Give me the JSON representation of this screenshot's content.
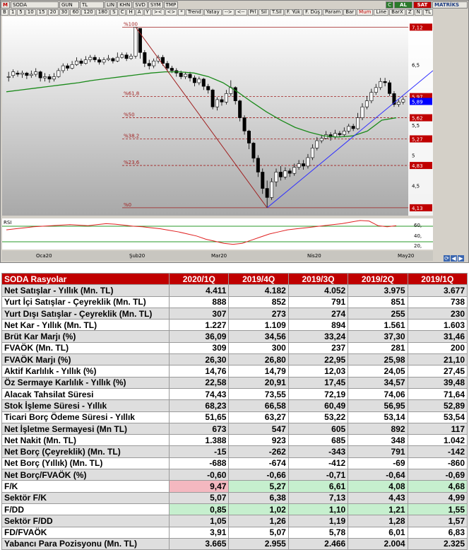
{
  "toolbar": {
    "symbol_prefix": "M",
    "symbol": "SODA",
    "period": "GUN",
    "currency": "TL",
    "scale": "LIN",
    "modes": [
      "KHN",
      "SVD",
      "SYM",
      "TMP"
    ],
    "al_label": "AL",
    "sat_label": "SAT",
    "matriks_label": "MATRİKS",
    "c_label": "C",
    "buttons_row2": [
      "B",
      "1",
      "5",
      "10",
      "15",
      "20",
      "30",
      "60",
      "120",
      "180",
      "S",
      "C",
      "H",
      "A",
      "Y",
      "><",
      "<>",
      "*",
      "Trend",
      "Yatay",
      "-->",
      "<--",
      "Prl",
      "Sil",
      "T.Sil",
      "F. Yük",
      "F. Düş",
      "Param",
      "Bar",
      "Mum",
      "Line",
      "BarX",
      "Z",
      "N",
      "TL"
    ]
  },
  "price_axis": [
    "7,12",
    "6,5",
    "5,97",
    "5,89",
    "5,62",
    "5,5",
    "5,27",
    "5",
    "4,83",
    "4,5",
    "4,13"
  ],
  "fib_levels": [
    {
      "label": "%100",
      "value": 7.12
    },
    {
      "label": "%61,8",
      "value": 5.97
    },
    {
      "label": "%50",
      "value": 5.62
    },
    {
      "label": "%38,2",
      "value": 5.27
    },
    {
      "label": "%23,6",
      "value": 4.83
    },
    {
      "label": "%0",
      "value": 4.13
    }
  ],
  "last_price": "5,89",
  "rsi_label": "RSI",
  "rsi_axis": [
    "60,",
    "40,",
    "20,"
  ],
  "x_labels": [
    "Oca20",
    "Şub20",
    "Mar20",
    "Nis20",
    "May20"
  ],
  "nav_icons": [
    "refresh-icon",
    "arrow-left-icon",
    "arrow-right-icon"
  ],
  "colors": {
    "header": "#c00000",
    "up_candle": "#ffffff",
    "down_candle": "#000000",
    "ma_line": "#1a8a1a",
    "trend_line": "#3030ff",
    "fib_line": "#a02020",
    "pink": "#f4b8c0",
    "green": "#c6efce"
  },
  "chart_data": {
    "type": "candlestick",
    "ylim": [
      4.0,
      7.3
    ],
    "candles": [
      [
        6.3,
        6.3,
        6.38,
        6.22
      ],
      [
        6.32,
        6.38,
        6.42,
        6.28
      ],
      [
        6.36,
        6.34,
        6.4,
        6.3
      ],
      [
        6.34,
        6.36,
        6.4,
        6.28
      ],
      [
        6.36,
        6.32,
        6.38,
        6.26
      ],
      [
        6.32,
        6.34,
        6.4,
        6.28
      ],
      [
        6.34,
        6.38,
        6.44,
        6.3
      ],
      [
        6.38,
        6.28,
        6.4,
        6.22
      ],
      [
        6.28,
        6.3,
        6.36,
        6.22
      ],
      [
        6.3,
        6.26,
        6.34,
        6.2
      ],
      [
        6.26,
        6.3,
        6.36,
        6.22
      ],
      [
        6.3,
        6.4,
        6.44,
        6.28
      ],
      [
        6.4,
        6.48,
        6.52,
        6.36
      ],
      [
        6.48,
        6.44,
        6.52,
        6.4
      ],
      [
        6.44,
        6.5,
        6.56,
        6.42
      ],
      [
        6.5,
        6.56,
        6.62,
        6.48
      ],
      [
        6.56,
        6.52,
        6.6,
        6.48
      ],
      [
        6.52,
        6.58,
        6.64,
        6.5
      ],
      [
        6.58,
        6.62,
        6.66,
        6.54
      ],
      [
        6.62,
        6.58,
        6.66,
        6.54
      ],
      [
        6.58,
        6.54,
        6.62,
        6.5
      ],
      [
        6.54,
        6.58,
        6.62,
        6.5
      ],
      [
        6.58,
        6.6,
        6.66,
        6.56
      ],
      [
        6.6,
        6.56,
        6.62,
        6.52
      ],
      [
        6.56,
        6.62,
        6.7,
        6.54
      ],
      [
        6.62,
        6.66,
        6.7,
        6.6
      ],
      [
        6.66,
        6.6,
        6.7,
        6.56
      ],
      [
        6.6,
        6.64,
        6.68,
        6.58
      ],
      [
        6.64,
        7.12,
        7.12,
        6.6
      ],
      [
        7.1,
        6.7,
        7.1,
        6.6
      ],
      [
        6.7,
        6.52,
        6.74,
        6.46
      ],
      [
        6.52,
        6.48,
        6.58,
        6.42
      ],
      [
        6.48,
        6.56,
        6.6,
        6.44
      ],
      [
        6.56,
        6.62,
        6.66,
        6.52
      ],
      [
        6.62,
        6.52,
        6.66,
        6.48
      ],
      [
        6.52,
        6.44,
        6.56,
        6.4
      ],
      [
        6.44,
        6.4,
        6.48,
        6.36
      ],
      [
        6.4,
        6.36,
        6.44,
        6.3
      ],
      [
        6.36,
        6.3,
        6.4,
        6.26
      ],
      [
        6.3,
        6.34,
        6.38,
        6.26
      ],
      [
        6.34,
        6.28,
        6.38,
        6.22
      ],
      [
        6.28,
        6.2,
        6.32,
        6.14
      ],
      [
        6.2,
        6.26,
        6.3,
        6.16
      ],
      [
        6.26,
        6.14,
        6.28,
        6.08
      ],
      [
        6.14,
        6.08,
        6.18,
        6.02
      ],
      [
        6.08,
        5.8,
        6.1,
        5.76
      ],
      [
        5.8,
        5.92,
        5.96,
        5.74
      ],
      [
        5.92,
        5.88,
        5.98,
        5.82
      ],
      [
        5.88,
        6.02,
        6.08,
        5.84
      ],
      [
        6.02,
        6.12,
        6.24,
        5.98
      ],
      [
        6.12,
        5.9,
        6.14,
        5.84
      ],
      [
        5.9,
        5.62,
        5.92,
        5.56
      ],
      [
        5.62,
        5.4,
        5.66,
        5.34
      ],
      [
        5.4,
        5.2,
        5.42,
        5.1
      ],
      [
        5.2,
        4.95,
        5.22,
        4.88
      ],
      [
        4.95,
        4.72,
        5.0,
        4.64
      ],
      [
        4.72,
        4.45,
        4.78,
        4.36
      ],
      [
        4.45,
        4.3,
        4.58,
        4.13
      ],
      [
        4.3,
        4.56,
        4.62,
        4.26
      ],
      [
        4.56,
        4.72,
        4.78,
        4.48
      ],
      [
        4.72,
        4.64,
        4.82,
        4.58
      ],
      [
        4.64,
        4.74,
        4.8,
        4.6
      ],
      [
        4.74,
        4.7,
        4.78,
        4.64
      ],
      [
        4.7,
        4.8,
        4.86,
        4.66
      ],
      [
        4.8,
        4.86,
        4.92,
        4.76
      ],
      [
        4.86,
        4.82,
        4.92,
        4.76
      ],
      [
        4.82,
        4.96,
        5.02,
        4.78
      ],
      [
        4.96,
        5.12,
        5.18,
        4.92
      ],
      [
        5.12,
        5.24,
        5.3,
        5.08
      ],
      [
        5.24,
        5.28,
        5.34,
        5.2
      ],
      [
        5.28,
        5.34,
        5.4,
        5.26
      ],
      [
        5.34,
        5.3,
        5.38,
        5.24
      ],
      [
        5.3,
        5.36,
        5.42,
        5.28
      ],
      [
        5.36,
        5.34,
        5.4,
        5.3
      ],
      [
        5.34,
        5.4,
        5.46,
        5.3
      ],
      [
        5.4,
        5.48,
        5.52,
        5.36
      ],
      [
        5.48,
        5.44,
        5.52,
        5.4
      ],
      [
        5.44,
        5.62,
        5.7,
        5.42
      ],
      [
        5.62,
        5.8,
        5.86,
        5.58
      ],
      [
        5.8,
        5.9,
        5.98,
        5.76
      ],
      [
        5.9,
        6.04,
        6.1,
        5.86
      ],
      [
        6.04,
        6.12,
        6.18,
        6.0
      ],
      [
        6.12,
        6.22,
        6.28,
        6.08
      ],
      [
        6.22,
        6.2,
        6.28,
        6.14
      ],
      [
        6.2,
        6.02,
        6.24,
        5.98
      ],
      [
        6.02,
        5.84,
        6.06,
        5.8
      ],
      [
        5.84,
        5.88,
        5.92,
        5.8
      ],
      [
        5.88,
        5.92,
        5.96,
        5.84
      ]
    ],
    "ma": [
      6.05,
      6.08,
      6.11,
      6.14,
      6.17,
      6.2,
      6.24,
      6.27,
      6.3,
      6.33,
      6.36,
      6.38,
      6.38,
      6.36,
      6.3,
      6.2,
      6.05,
      5.88,
      5.72,
      5.58,
      5.46,
      5.38,
      5.32,
      5.3,
      5.32,
      5.4,
      5.58,
      5.62
    ],
    "rsi": [
      48,
      50,
      52,
      54,
      55,
      56,
      57,
      58,
      57,
      56,
      58,
      60,
      59,
      57,
      55,
      54,
      52,
      50,
      47,
      44,
      40,
      36,
      30,
      26,
      22,
      20,
      22,
      28,
      34,
      40,
      44,
      48,
      50,
      52,
      54,
      56,
      58,
      60,
      63,
      66,
      65,
      56,
      54,
      56
    ]
  },
  "table": {
    "header": [
      "SODA Rasyolar",
      "2020/1Q",
      "2019/4Q",
      "2019/3Q",
      "2019/2Q",
      "2019/1Q"
    ],
    "rows": [
      {
        "label": "Net Satışlar - Yıllık (Mn. TL)",
        "values": [
          "4.411",
          "4.182",
          "4.052",
          "3.975",
          "3.677"
        ]
      },
      {
        "label": "Yurt İçi Satışlar - Çeyreklik (Mn. TL)",
        "values": [
          "888",
          "852",
          "791",
          "851",
          "738"
        ]
      },
      {
        "label": "Yurt Dışı Satışlar - Çeyreklik (Mn. TL)",
        "values": [
          "307",
          "273",
          "274",
          "255",
          "230"
        ]
      },
      {
        "label": "Net Kar - Yıllık (Mn. TL)",
        "values": [
          "1.227",
          "1.109",
          "894",
          "1.561",
          "1.603"
        ]
      },
      {
        "label": "Brüt Kar Marjı (%)",
        "values": [
          "36,09",
          "34,56",
          "33,24",
          "37,30",
          "31,46"
        ]
      },
      {
        "label": "FVAÖK (Mn. TL)",
        "values": [
          "309",
          "300",
          "237",
          "281",
          "200"
        ]
      },
      {
        "label": "FVAÖK Marjı (%)",
        "values": [
          "26,30",
          "26,80",
          "22,95",
          "25,98",
          "21,10"
        ]
      },
      {
        "label": "Aktif Karlılık - Yıllık (%)",
        "values": [
          "14,76",
          "14,79",
          "12,03",
          "24,05",
          "27,45"
        ]
      },
      {
        "label": "Öz Sermaye Karlılık - Yıllık (%)",
        "values": [
          "22,58",
          "20,91",
          "17,45",
          "34,57",
          "39,48"
        ]
      },
      {
        "label": "Alacak Tahsilat Süresi",
        "values": [
          "74,43",
          "73,55",
          "72,19",
          "74,06",
          "71,64"
        ]
      },
      {
        "label": "Stok İşleme Süresi - Yıllık",
        "values": [
          "68,23",
          "66,58",
          "60,49",
          "56,95",
          "52,89"
        ]
      },
      {
        "label": "Ticari Borç Ödeme Süresi - Yıllık",
        "values": [
          "51,65",
          "63,27",
          "53,22",
          "53,14",
          "53,54"
        ]
      },
      {
        "label": "Net İşletme Sermayesi (Mn TL)",
        "values": [
          "673",
          "547",
          "605",
          "892",
          "117"
        ]
      },
      {
        "label": "Net Nakit (Mn. TL)",
        "values": [
          "1.388",
          "923",
          "685",
          "348",
          "1.042"
        ]
      },
      {
        "label": "Net Borç (Çeyreklik) (Mn. TL)",
        "values": [
          "-15",
          "-262",
          "-343",
          "791",
          "-142"
        ]
      },
      {
        "label": "Net Borç (Yıllık) (Mn. TL)",
        "values": [
          "-688",
          "-674",
          "-412",
          "-69",
          "-860"
        ]
      },
      {
        "label": "Net Borç/FVAÖK (%)",
        "values": [
          "-0,60",
          "-0,66",
          "-0,71",
          "-0,64",
          "-0,69"
        ]
      },
      {
        "label": "F/K",
        "values": [
          "9,47",
          "5,27",
          "6,61",
          "4,08",
          "4,68"
        ],
        "hl": [
          "pink",
          "green",
          "green",
          "green",
          "green"
        ]
      },
      {
        "label": "Sektör F/K",
        "values": [
          "5,07",
          "6,38",
          "7,13",
          "4,43",
          "4,99"
        ]
      },
      {
        "label": "F/DD",
        "values": [
          "0,85",
          "1,02",
          "1,10",
          "1,21",
          "1,55"
        ],
        "hl": [
          "green",
          "green",
          "green",
          "green",
          "green"
        ]
      },
      {
        "label": "Sektör F/DD",
        "values": [
          "1,05",
          "1,26",
          "1,19",
          "1,28",
          "1,57"
        ]
      },
      {
        "label": "FD/FVAÖK",
        "values": [
          "3,91",
          "5,07",
          "5,78",
          "6,01",
          "6,83"
        ]
      },
      {
        "label": "Yabancı Para Pozisyonu (Mn. TL)",
        "values": [
          "3.665",
          "2.955",
          "2.466",
          "2.004",
          "2.325"
        ]
      }
    ]
  }
}
